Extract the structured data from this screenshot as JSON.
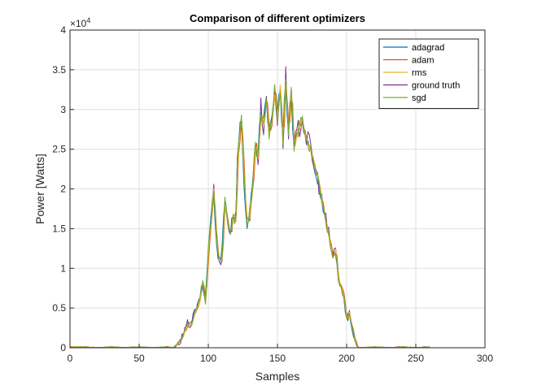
{
  "chart_data": {
    "type": "line",
    "title": "Comparison of different optimizers",
    "xlabel": "Samples",
    "ylabel": "Power [Watts]",
    "y_exponent_label": "×10",
    "y_exponent": "4",
    "xlim": [
      0,
      300
    ],
    "ylim": [
      0,
      4
    ],
    "xticks": [
      0,
      50,
      100,
      150,
      200,
      250,
      300
    ],
    "yticks": [
      0,
      0.5,
      1,
      1.5,
      2,
      2.5,
      3,
      3.5,
      4
    ],
    "xtick_labels": [
      "0",
      "50",
      "100",
      "150",
      "200",
      "250",
      "300"
    ],
    "ytick_labels": [
      "0",
      "0.5",
      "1",
      "1.5",
      "2",
      "2.5",
      "3",
      "3.5",
      "4"
    ],
    "grid": true,
    "legend_position": "top-right",
    "base_profile": {
      "x": [
        0,
        10,
        20,
        30,
        40,
        50,
        60,
        70,
        75,
        78,
        80,
        83,
        85,
        88,
        90,
        92,
        94,
        96,
        98,
        100,
        102,
        104,
        106,
        108,
        110,
        112,
        114,
        116,
        118,
        120,
        121,
        122,
        124,
        126,
        128,
        130,
        132,
        134,
        136,
        138,
        140,
        142,
        144,
        146,
        148,
        150,
        152,
        154,
        156,
        158,
        160,
        162,
        164,
        166,
        168,
        170,
        172,
        174,
        176,
        178,
        180,
        182,
        184,
        186,
        188,
        190,
        192,
        194,
        196,
        198,
        200,
        202,
        204,
        206,
        208,
        210,
        220,
        230,
        240,
        250,
        260
      ],
      "y": [
        0.01,
        0.01,
        0.0,
        0.01,
        0.0,
        0.01,
        0.0,
        0.01,
        0.0,
        0.05,
        0.1,
        0.2,
        0.3,
        0.3,
        0.45,
        0.5,
        0.6,
        0.85,
        0.55,
        1.2,
        1.6,
        2.05,
        1.3,
        1.1,
        1.15,
        1.85,
        1.6,
        1.4,
        1.7,
        1.55,
        2.3,
        2.5,
        2.95,
        2.1,
        1.5,
        1.7,
        2.0,
        2.6,
        2.35,
        3.0,
        2.8,
        3.2,
        2.7,
        2.85,
        3.25,
        2.9,
        3.3,
        2.6,
        3.4,
        2.7,
        3.25,
        2.55,
        2.65,
        2.8,
        2.9,
        2.7,
        2.6,
        2.5,
        2.35,
        2.2,
        2.05,
        1.85,
        1.7,
        1.5,
        1.35,
        1.15,
        1.25,
        0.9,
        0.75,
        0.65,
        0.35,
        0.45,
        0.25,
        0.1,
        0.0,
        0.0,
        0.01,
        0.0,
        0.01,
        0.0,
        0.01
      ]
    },
    "series": [
      {
        "name": "adagrad",
        "color": "#0072BD",
        "noise": 0.05,
        "seed": 11,
        "shift": -0.3
      },
      {
        "name": "adam",
        "color": "#D95319",
        "noise": 0.06,
        "seed": 23,
        "shift": 0.4
      },
      {
        "name": "rms",
        "color": "#EDB120",
        "noise": 0.05,
        "seed": 37,
        "shift": 0.2
      },
      {
        "name": "ground truth",
        "color": "#7E2F8E",
        "noise": 0.12,
        "seed": 53,
        "shift": 0.0
      },
      {
        "name": "sgd",
        "color": "#77AC30",
        "noise": 0.07,
        "seed": 71,
        "shift": -0.1
      }
    ]
  }
}
